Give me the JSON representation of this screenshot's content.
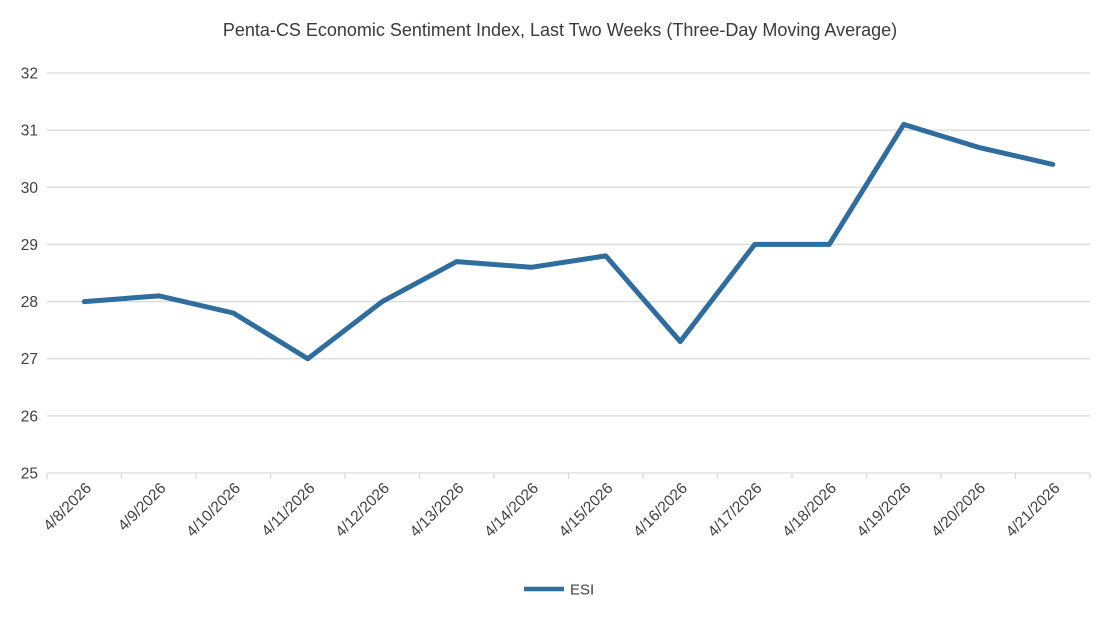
{
  "title": "Penta-CS Economic Sentiment Index, Last Two Weeks (Three-Day Moving Average)",
  "legend": {
    "label": "ESI"
  },
  "colors": {
    "line": "#2E6D9E",
    "grid": "#D9D9D9",
    "axis": "#D9D9D9",
    "tick_text": "#404040",
    "title_text": "#3A3A3A",
    "background": "#FFFFFF"
  },
  "chart_data": {
    "type": "line",
    "title": "Penta-CS Economic Sentiment Index, Last Two Weeks (Three-Day Moving Average)",
    "x": [
      "4/8/2026",
      "4/9/2026",
      "4/10/2026",
      "4/11/2026",
      "4/12/2026",
      "4/13/2026",
      "4/14/2026",
      "4/15/2026",
      "4/16/2026",
      "4/17/2026",
      "4/18/2026",
      "4/19/2026",
      "4/20/2026",
      "4/21/2026"
    ],
    "series": [
      {
        "name": "ESI",
        "values": [
          28.0,
          28.1,
          27.8,
          27.0,
          28.0,
          28.7,
          28.6,
          28.8,
          27.3,
          29.0,
          29.0,
          31.1,
          30.7,
          30.4
        ]
      }
    ],
    "xlabel": "",
    "ylabel": "",
    "ylim": [
      25,
      32
    ],
    "yticks": [
      25,
      26,
      27,
      28,
      29,
      30,
      31,
      32
    ],
    "grid": "horizontal",
    "legend_position": "bottom",
    "x_tick_rotation_deg": -45
  }
}
